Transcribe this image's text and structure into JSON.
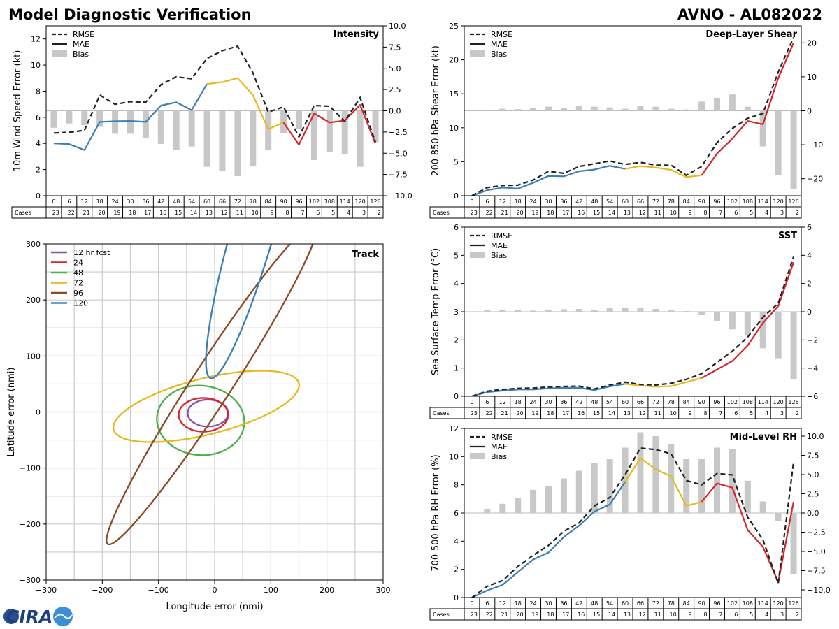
{
  "header": {
    "title": "Model Diagnostic Verification",
    "storm": "AVNO - AL082022",
    "logo_text": "CIRA"
  },
  "colors": {
    "rmse": "#222222",
    "mae_black": "#222222",
    "bias_gray": "#c8c8c8",
    "blue": "#3a7fb5",
    "yellow": "#e6b91e",
    "red": "#d7262b",
    "purple": "#8e4fa8",
    "green": "#4daf4a",
    "brown": "#8b4a24",
    "grid": "#cccccc"
  },
  "legend_labels": {
    "rmse": "RMSE",
    "mae": "MAE",
    "bias": "Bias"
  },
  "hours": [
    "0",
    "6",
    "12",
    "18",
    "24",
    "30",
    "36",
    "42",
    "48",
    "54",
    "60",
    "66",
    "72",
    "78",
    "84",
    "90",
    "96",
    "102",
    "108",
    "114",
    "120",
    "126"
  ],
  "cases": [
    "23",
    "22",
    "21",
    "20",
    "19",
    "18",
    "17",
    "16",
    "15",
    "14",
    "13",
    "12",
    "11",
    "10",
    "9",
    "8",
    "7",
    "6",
    "5",
    "4",
    "3",
    "2"
  ],
  "cases_label": "Cases",
  "chart_data": [
    {
      "type": "line",
      "name": "intensity",
      "title": "Intensity",
      "ylabel": "10m Wind Speed Error (kt)",
      "ylim": [
        0,
        13
      ],
      "yticks": [
        0,
        2,
        4,
        6,
        8,
        10,
        12
      ],
      "y2lim": [
        -10,
        10
      ],
      "y2ticks": [
        -10.0,
        -7.5,
        -5.0,
        -2.5,
        0.0,
        2.5,
        5.0,
        7.5,
        10.0
      ],
      "y2ticklabels": [
        "−10.0",
        "−7.5",
        "−5.0",
        "−2.5",
        "0.0",
        "2.5",
        "5.0",
        "7.5",
        "10.0"
      ],
      "x": [
        0,
        6,
        12,
        18,
        24,
        30,
        36,
        42,
        48,
        54,
        60,
        66,
        72,
        78,
        84,
        90,
        96,
        102,
        108,
        114,
        120,
        126
      ],
      "rmse": [
        4.8,
        4.85,
        5.0,
        7.7,
        7.0,
        7.2,
        7.15,
        8.5,
        9.1,
        8.95,
        10.5,
        11.1,
        11.45,
        9.4,
        6.4,
        6.8,
        4.5,
        6.9,
        6.85,
        5.7,
        7.5,
        4.1
      ],
      "mae": [
        4.0,
        3.95,
        3.5,
        5.65,
        5.7,
        5.72,
        5.65,
        6.9,
        7.15,
        6.55,
        8.55,
        8.7,
        9.0,
        7.7,
        5.1,
        5.6,
        3.9,
        6.3,
        5.6,
        5.75,
        6.95,
        4.0
      ],
      "mae_segments": [
        [
          0,
          10,
          "blue"
        ],
        [
          10,
          15,
          "yellow"
        ],
        [
          15,
          21,
          "red"
        ]
      ],
      "bias": [
        -2.0,
        -1.5,
        -1.7,
        -1.9,
        -2.7,
        -2.7,
        -3.2,
        -3.9,
        -4.6,
        -4.2,
        -6.6,
        -7.1,
        -7.7,
        -6.5,
        -4.6,
        -2.6,
        -2.1,
        -5.8,
        -4.9,
        -5.1,
        -6.6,
        -3.7
      ]
    },
    {
      "type": "line",
      "name": "shear",
      "title": "Deep-Layer Shear",
      "ylabel": "200-850 hPa Shear Error (kt)",
      "ylim": [
        0,
        25
      ],
      "yticks": [
        0,
        5,
        10,
        15,
        20,
        25
      ],
      "y2lim": [
        -25,
        25
      ],
      "y2ticks": [
        -20,
        -10,
        0,
        10,
        20
      ],
      "y2ticklabels": [
        "−20",
        "−10",
        "0",
        "10",
        "20"
      ],
      "x": [
        0,
        6,
        12,
        18,
        24,
        30,
        36,
        42,
        48,
        54,
        60,
        66,
        72,
        78,
        84,
        90,
        96,
        102,
        108,
        114,
        120,
        126
      ],
      "rmse": [
        0.0,
        1.2,
        1.5,
        1.55,
        2.3,
        3.6,
        3.3,
        4.3,
        4.7,
        5.1,
        4.6,
        4.9,
        4.5,
        4.5,
        3.0,
        4.3,
        7.8,
        9.9,
        11.4,
        12.1,
        18.2,
        23.3
      ],
      "mae": [
        0.0,
        0.8,
        1.2,
        1.05,
        1.9,
        2.9,
        2.85,
        3.6,
        3.85,
        4.4,
        3.95,
        4.35,
        4.15,
        3.8,
        2.75,
        3.0,
        6.2,
        8.4,
        11.0,
        10.5,
        17.3,
        22.5
      ],
      "mae_segments": [
        [
          0,
          10,
          "blue"
        ],
        [
          10,
          15,
          "yellow"
        ],
        [
          15,
          21,
          "red"
        ]
      ],
      "bias": [
        0.0,
        0.3,
        0.6,
        0.5,
        0.8,
        1.2,
        0.9,
        1.5,
        1.2,
        1.0,
        0.6,
        1.5,
        1.2,
        0.6,
        0.4,
        2.7,
        3.8,
        4.8,
        1.2,
        -10.5,
        -19.0,
        -23.0
      ]
    },
    {
      "type": "line",
      "name": "sst",
      "title": "SST",
      "ylabel": "Sea Surface Temp Error (°C)",
      "ylim": [
        0,
        6
      ],
      "yticks": [
        0,
        1,
        2,
        3,
        4,
        5,
        6
      ],
      "y2lim": [
        -6,
        6
      ],
      "y2ticks": [
        -6,
        -4,
        -2,
        0,
        2,
        4,
        6
      ],
      "y2ticklabels": [
        "−6",
        "−4",
        "−2",
        "0",
        "2",
        "4",
        "6"
      ],
      "x": [
        0,
        6,
        12,
        18,
        24,
        30,
        36,
        42,
        48,
        54,
        60,
        66,
        72,
        78,
        84,
        90,
        96,
        102,
        108,
        114,
        120,
        126
      ],
      "rmse": [
        0.0,
        0.18,
        0.24,
        0.28,
        0.29,
        0.33,
        0.35,
        0.36,
        0.26,
        0.4,
        0.5,
        0.42,
        0.4,
        0.46,
        0.6,
        0.8,
        1.2,
        1.6,
        2.1,
        2.8,
        3.3,
        4.95
      ],
      "mae": [
        0.0,
        0.15,
        0.2,
        0.24,
        0.24,
        0.28,
        0.3,
        0.3,
        0.22,
        0.35,
        0.44,
        0.38,
        0.34,
        0.36,
        0.5,
        0.65,
        0.95,
        1.25,
        1.8,
        2.6,
        3.2,
        4.75
      ],
      "mae_segments": [
        [
          0,
          10,
          "blue"
        ],
        [
          10,
          15,
          "yellow"
        ],
        [
          15,
          21,
          "red"
        ]
      ],
      "bias": [
        0.0,
        0.1,
        0.15,
        0.12,
        0.08,
        0.12,
        0.18,
        0.2,
        0.1,
        0.25,
        0.3,
        0.3,
        0.2,
        0.12,
        0.05,
        -0.2,
        -0.65,
        -1.25,
        -1.7,
        -2.6,
        -3.3,
        -4.8
      ]
    },
    {
      "type": "line",
      "name": "rh",
      "title": "Mid-Level RH",
      "ylabel": "700-500 hPa RH Error (%)",
      "ylim": [
        0,
        12
      ],
      "yticks": [
        0,
        2,
        4,
        6,
        8,
        10,
        12
      ],
      "y2lim": [
        -11,
        11
      ],
      "y2ticks": [
        -10.0,
        -7.5,
        -5.0,
        -2.5,
        0.0,
        2.5,
        5.0,
        7.5,
        10.0
      ],
      "y2ticklabels": [
        "−10.0",
        "−7.5",
        "−5.0",
        "−2.5",
        "0.0",
        "2.5",
        "5.0",
        "7.5",
        "10.0"
      ],
      "x": [
        0,
        6,
        12,
        18,
        24,
        30,
        36,
        42,
        48,
        54,
        60,
        66,
        72,
        78,
        84,
        90,
        96,
        102,
        108,
        114,
        120,
        126
      ],
      "rmse": [
        0.0,
        0.8,
        1.2,
        2.2,
        3.0,
        3.7,
        4.7,
        5.3,
        6.5,
        7.1,
        8.7,
        10.6,
        10.5,
        10.2,
        8.3,
        8.0,
        8.8,
        8.7,
        5.7,
        4.1,
        1.0,
        9.6
      ],
      "mae": [
        0.0,
        0.5,
        0.9,
        1.8,
        2.7,
        3.2,
        4.3,
        5.1,
        6.1,
        6.6,
        8.2,
        9.9,
        9.1,
        8.6,
        6.5,
        6.8,
        8.1,
        7.8,
        4.8,
        3.6,
        1.1,
        6.8
      ],
      "mae_segments": [
        [
          0,
          10,
          "blue"
        ],
        [
          10,
          15,
          "yellow"
        ],
        [
          15,
          21,
          "red"
        ]
      ],
      "bias": [
        0.0,
        0.5,
        1.2,
        2.0,
        3.0,
        3.5,
        4.5,
        5.5,
        6.5,
        7.0,
        8.5,
        10.5,
        10.0,
        9.0,
        7.0,
        7.0,
        8.5,
        8.3,
        4.2,
        1.5,
        -1.0,
        -8.0
      ]
    },
    {
      "type": "scatter",
      "name": "track",
      "title": "Track",
      "xlabel": "Longitude error (nmi)",
      "ylabel": "Latitude error (nmi)",
      "xlim": [
        -300,
        300
      ],
      "ylim": [
        -300,
        300
      ],
      "xticks": [
        -300,
        -200,
        -100,
        0,
        100,
        200,
        300
      ],
      "yticks": [
        -300,
        -200,
        -100,
        0,
        100,
        200,
        300
      ],
      "xticklabels": [
        "−300",
        "−200",
        "−100",
        "0",
        "100",
        "200",
        "300"
      ],
      "yticklabels": [
        "−300",
        "−200",
        "−100",
        "0",
        "100",
        "200",
        "300"
      ],
      "ellipses": [
        {
          "label": "12 hr fcst",
          "color": "purple",
          "cx": -12,
          "cy": -2,
          "a": 36,
          "b": 24,
          "angle": 0
        },
        {
          "label": "24",
          "color": "red",
          "cx": -20,
          "cy": -5,
          "a": 44,
          "b": 30,
          "angle": 0
        },
        {
          "label": "48",
          "color": "green",
          "cx": -25,
          "cy": -15,
          "a": 78,
          "b": 62,
          "angle": 5
        },
        {
          "label": "72",
          "color": "yellow",
          "cx": -15,
          "cy": 10,
          "a": 170,
          "b": 50,
          "angle": -14
        },
        {
          "label": "96",
          "color": "brown",
          "cx": -5,
          "cy": 50,
          "a": 340,
          "b": 35,
          "angle": -57
        },
        {
          "label": "120",
          "color": "blue",
          "cx": 70,
          "cy": 330,
          "a": 280,
          "b": 38,
          "angle": -74
        }
      ]
    }
  ]
}
